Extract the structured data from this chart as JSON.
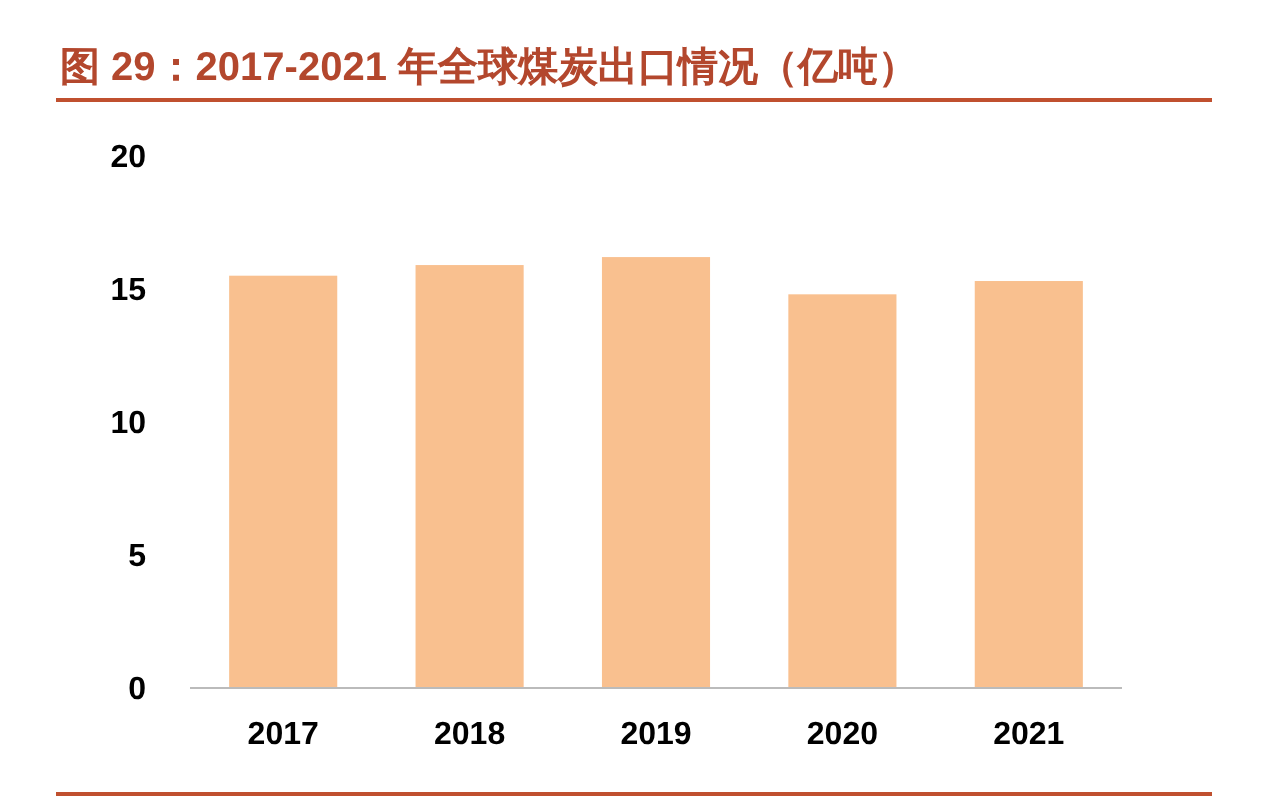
{
  "chart_data": {
    "type": "bar",
    "title": "图 29：2017-2021 年全球煤炭出口情况（亿吨）",
    "categories": [
      "2017",
      "2018",
      "2019",
      "2020",
      "2021"
    ],
    "values": [
      15.5,
      15.9,
      16.2,
      14.8,
      15.3
    ],
    "color": "#f9c08f",
    "ylim": [
      0,
      20
    ],
    "yticks": [
      0,
      5,
      10,
      15,
      20
    ],
    "grid": false
  }
}
